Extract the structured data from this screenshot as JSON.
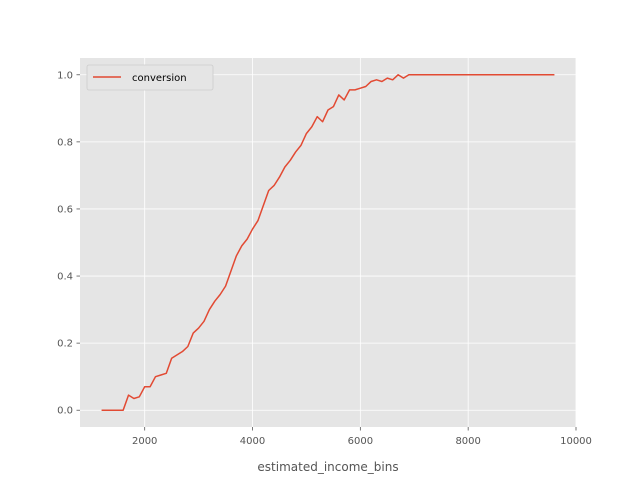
{
  "chart_data": {
    "type": "line",
    "title": "",
    "xlabel": "estimated_income_bins",
    "ylabel": "",
    "xlim": [
      800,
      10000
    ],
    "ylim": [
      -0.05,
      1.05
    ],
    "xticks": [
      2000,
      4000,
      6000,
      8000,
      10000
    ],
    "xtick_labels": [
      "2000",
      "4000",
      "6000",
      "8000",
      "10000"
    ],
    "yticks": [
      0.0,
      0.2,
      0.4,
      0.6,
      0.8,
      1.0
    ],
    "ytick_labels": [
      "0.0",
      "0.2",
      "0.4",
      "0.6",
      "0.8",
      "1.0"
    ],
    "grid": true,
    "legend_position": "top-left",
    "series": [
      {
        "name": "conversion",
        "color": "#e24a33",
        "x": [
          1200,
          1300,
          1400,
          1500,
          1600,
          1700,
          1800,
          1900,
          2000,
          2100,
          2200,
          2300,
          2400,
          2500,
          2600,
          2700,
          2800,
          2900,
          3000,
          3100,
          3200,
          3300,
          3400,
          3500,
          3600,
          3700,
          3800,
          3900,
          4000,
          4100,
          4200,
          4300,
          4400,
          4500,
          4600,
          4700,
          4800,
          4900,
          5000,
          5100,
          5200,
          5300,
          5400,
          5500,
          5600,
          5700,
          5800,
          5900,
          6000,
          6100,
          6200,
          6300,
          6400,
          6500,
          6600,
          6700,
          6800,
          6900,
          7000,
          7500,
          8000,
          8500,
          9000,
          9600
        ],
        "y": [
          0.0,
          0.0,
          0.0,
          0.0,
          0.0,
          0.045,
          0.035,
          0.04,
          0.07,
          0.07,
          0.1,
          0.105,
          0.11,
          0.155,
          0.165,
          0.175,
          0.19,
          0.23,
          0.245,
          0.265,
          0.3,
          0.325,
          0.345,
          0.37,
          0.415,
          0.46,
          0.49,
          0.51,
          0.54,
          0.565,
          0.61,
          0.655,
          0.67,
          0.695,
          0.725,
          0.745,
          0.77,
          0.79,
          0.825,
          0.845,
          0.875,
          0.86,
          0.895,
          0.905,
          0.94,
          0.925,
          0.955,
          0.955,
          0.96,
          0.965,
          0.98,
          0.985,
          0.98,
          0.99,
          0.985,
          1.0,
          0.99,
          1.0,
          1.0,
          1.0,
          1.0,
          1.0,
          1.0,
          1.0
        ]
      }
    ]
  }
}
